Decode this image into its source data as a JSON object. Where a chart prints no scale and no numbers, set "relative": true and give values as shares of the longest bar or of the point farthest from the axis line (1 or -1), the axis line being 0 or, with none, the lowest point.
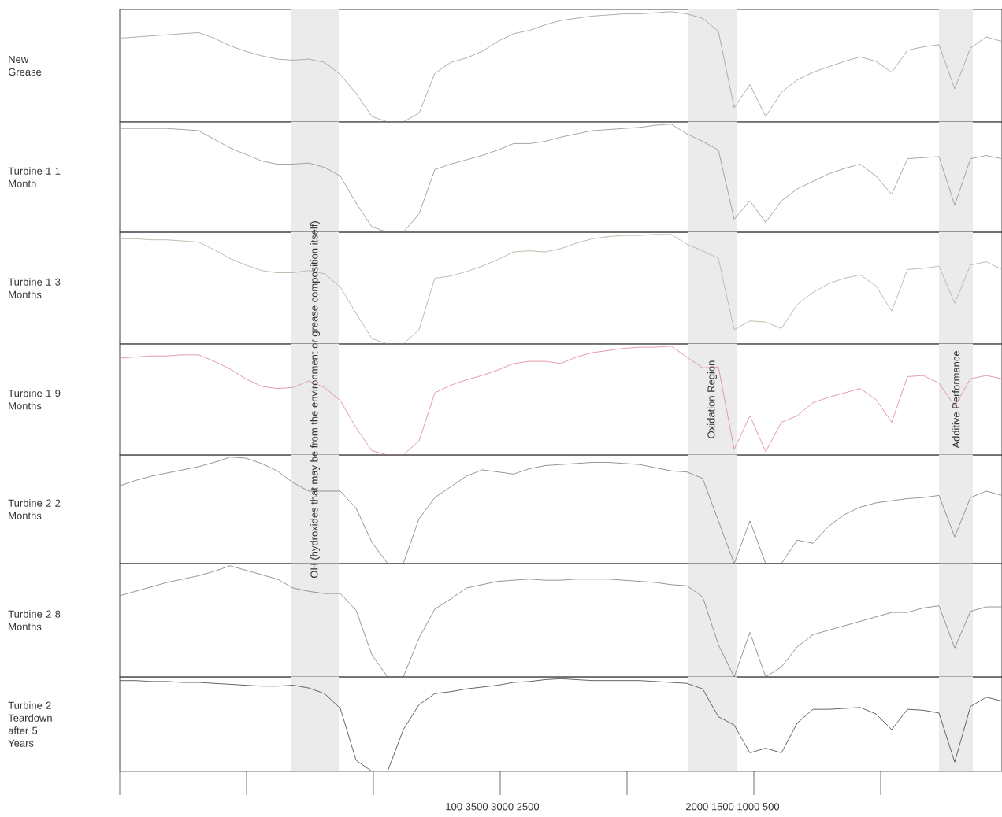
{
  "chart_data": [
    {
      "type": "line",
      "ylabel": "New Grease",
      "relative": true,
      "categories": [
        null,
        null,
        null,
        null,
        null,
        null,
        null,
        null,
        null,
        null,
        null,
        null,
        null,
        null,
        null,
        null,
        null,
        null,
        null,
        null,
        null,
        null,
        null,
        null,
        null,
        null,
        null,
        null,
        null,
        null,
        null,
        null,
        null,
        null,
        null,
        null,
        null,
        null,
        null,
        null,
        null,
        null,
        null,
        null,
        null,
        null,
        null,
        null,
        null,
        null,
        null,
        null,
        null,
        null,
        null,
        null,
        null
      ],
      "series": [
        {
          "color": "#a4a4b4",
          "values": [
            0.76,
            0.77,
            0.78,
            0.79,
            0.8,
            0.81,
            0.76,
            0.69,
            0.64,
            0.6,
            0.57,
            0.56,
            0.57,
            0.54,
            0.43,
            0.26,
            0.05,
            0,
            0,
            0.08,
            0.44,
            0.54,
            0.58,
            0.64,
            0.73,
            0.8,
            0.83,
            0.88,
            0.92,
            0.94,
            0.96,
            0.97,
            0.98,
            0.98,
            0.99,
            1,
            0.98,
            0.94,
            0.82,
            0.13,
            0.34,
            0.05,
            0.27,
            0.38,
            0.45,
            0.5,
            0.55,
            0.59,
            0.55,
            0.45,
            0.65,
            0.68,
            0.7,
            0.3,
            0.67,
            0.77,
            0.73
          ]
        }
      ]
    },
    {
      "type": "line",
      "ylabel": "Turbine 1 1 Month",
      "relative": true,
      "categories": [
        null,
        null,
        null,
        null,
        null,
        null,
        null,
        null,
        null,
        null,
        null,
        null,
        null,
        null,
        null,
        null,
        null,
        null,
        null,
        null,
        null,
        null,
        null,
        null,
        null,
        null,
        null,
        null,
        null,
        null,
        null,
        null,
        null,
        null,
        null,
        null,
        null,
        null,
        null,
        null,
        null,
        null,
        null,
        null,
        null,
        null,
        null,
        null,
        null,
        null,
        null,
        null,
        null,
        null,
        null,
        null,
        null
      ],
      "series": [
        {
          "color": "#9c9c9c",
          "values": [
            0.96,
            0.96,
            0.96,
            0.96,
            0.95,
            0.94,
            0.86,
            0.78,
            0.72,
            0.66,
            0.63,
            0.63,
            0.64,
            0.6,
            0.52,
            0.27,
            0.05,
            0,
            0,
            0.17,
            0.58,
            0.63,
            0.67,
            0.71,
            0.76,
            0.82,
            0.82,
            0.84,
            0.88,
            0.91,
            0.94,
            0.95,
            0.96,
            0.97,
            0.99,
            1,
            0.91,
            0.84,
            0.76,
            0.12,
            0.29,
            0.09,
            0.29,
            0.4,
            0.47,
            0.54,
            0.59,
            0.63,
            0.52,
            0.35,
            0.68,
            0.69,
            0.7,
            0.25,
            0.68,
            0.71,
            0.68
          ]
        }
      ]
    },
    {
      "type": "line",
      "ylabel": "Turbine 1 3 Months",
      "relative": true,
      "categories": [
        null,
        null,
        null,
        null,
        null,
        null,
        null,
        null,
        null,
        null,
        null,
        null,
        null,
        null,
        null,
        null,
        null,
        null,
        null,
        null,
        null,
        null,
        null,
        null,
        null,
        null,
        null,
        null,
        null,
        null,
        null,
        null,
        null,
        null,
        null,
        null,
        null,
        null,
        null,
        null,
        null,
        null,
        null,
        null,
        null,
        null,
        null,
        null,
        null,
        null,
        null,
        null,
        null,
        null,
        null,
        null,
        null
      ],
      "series": [
        {
          "color": "#b4b8a4",
          "values": [
            0.96,
            0.96,
            0.95,
            0.95,
            0.94,
            0.93,
            0.86,
            0.78,
            0.72,
            0.67,
            0.65,
            0.65,
            0.67,
            0.64,
            0.52,
            0.28,
            0.05,
            0,
            0,
            0.13,
            0.6,
            0.62,
            0.66,
            0.71,
            0.77,
            0.84,
            0.85,
            0.84,
            0.87,
            0.92,
            0.96,
            0.98,
            0.99,
            0.99,
            1,
            1,
            0.91,
            0.85,
            0.78,
            0.13,
            0.21,
            0.2,
            0.14,
            0.36,
            0.47,
            0.55,
            0.6,
            0.63,
            0.53,
            0.3,
            0.68,
            0.69,
            0.71,
            0.37,
            0.72,
            0.75,
            0.68
          ]
        }
      ]
    },
    {
      "type": "line",
      "ylabel": "Turbine 1 9 Months",
      "relative": true,
      "annotations": [
        "OH (hydroxides that may be from the environment or grease composition itself)",
        "Oxidation Region",
        "Additive Performance"
      ],
      "categories": [
        null,
        null,
        null,
        null,
        null,
        null,
        null,
        null,
        null,
        null,
        null,
        null,
        null,
        null,
        null,
        null,
        null,
        null,
        null,
        null,
        null,
        null,
        null,
        null,
        null,
        null,
        null,
        null,
        null,
        null,
        null,
        null,
        null,
        null,
        null,
        null,
        null,
        null,
        null,
        null,
        null,
        null,
        null,
        null,
        null,
        null,
        null,
        null,
        null,
        null,
        null,
        null,
        null,
        null,
        null,
        null,
        null
      ],
      "series": [
        {
          "color": "#e0929c",
          "values": [
            0.89,
            0.9,
            0.91,
            0.91,
            0.92,
            0.92,
            0.86,
            0.79,
            0.7,
            0.63,
            0.61,
            0.62,
            0.68,
            0.62,
            0.5,
            0.25,
            0.04,
            0,
            0,
            0.13,
            0.57,
            0.64,
            0.69,
            0.73,
            0.78,
            0.84,
            0.86,
            0.86,
            0.84,
            0.9,
            0.94,
            0.96,
            0.98,
            0.99,
            0.99,
            1,
            0.9,
            0.8,
            0.81,
            0.05,
            0.36,
            0.03,
            0.3,
            0.36,
            0.48,
            0.53,
            0.57,
            0.61,
            0.51,
            0.3,
            0.72,
            0.73,
            0.66,
            0.45,
            0.7,
            0.73,
            0.7
          ]
        }
      ]
    },
    {
      "type": "line",
      "ylabel": "Turbine 2 2 Months",
      "relative": true,
      "categories": [
        null,
        null,
        null,
        null,
        null,
        null,
        null,
        null,
        null,
        null,
        null,
        null,
        null,
        null,
        null,
        null,
        null,
        null,
        null,
        null,
        null,
        null,
        null,
        null,
        null,
        null,
        null,
        null,
        null,
        null,
        null,
        null,
        null,
        null,
        null,
        null,
        null,
        null,
        null,
        null,
        null,
        null,
        null,
        null,
        null,
        null,
        null,
        null,
        null,
        null,
        null,
        null,
        null,
        null,
        null,
        null,
        null
      ],
      "series": [
        {
          "color": "#8a8a8a",
          "values": [
            0.73,
            0.78,
            0.82,
            0.85,
            0.88,
            0.91,
            0.95,
            1,
            0.99,
            0.94,
            0.87,
            0.76,
            0.68,
            0.68,
            0.68,
            0.52,
            0.2,
            0,
            0,
            0.42,
            0.62,
            0.72,
            0.82,
            0.88,
            0.86,
            0.84,
            0.89,
            0.92,
            0.93,
            0.94,
            0.95,
            0.95,
            0.94,
            0.93,
            0.9,
            0.87,
            0.86,
            0.8,
            0.4,
            0,
            0.4,
            0,
            0,
            0.22,
            0.19,
            0.35,
            0.46,
            0.53,
            0.57,
            0.59,
            0.61,
            0.62,
            0.64,
            0.25,
            0.62,
            0.68,
            0.64
          ]
        }
      ]
    },
    {
      "type": "line",
      "ylabel": "Turbine 2 8 Months",
      "relative": true,
      "categories": [
        null,
        null,
        null,
        null,
        null,
        null,
        null,
        null,
        null,
        null,
        null,
        null,
        null,
        null,
        null,
        null,
        null,
        null,
        null,
        null,
        null,
        null,
        null,
        null,
        null,
        null,
        null,
        null,
        null,
        null,
        null,
        null,
        null,
        null,
        null,
        null,
        null,
        null,
        null,
        null,
        null,
        null,
        null,
        null,
        null,
        null,
        null,
        null,
        null,
        null,
        null,
        null,
        null,
        null,
        null,
        null,
        null
      ],
      "series": [
        {
          "color": "#8a8a8a",
          "values": [
            0.73,
            0.77,
            0.81,
            0.85,
            0.88,
            0.91,
            0.95,
            1,
            0.96,
            0.92,
            0.88,
            0.8,
            0.77,
            0.75,
            0.75,
            0.6,
            0.2,
            0,
            0,
            0.35,
            0.61,
            0.7,
            0.8,
            0.83,
            0.86,
            0.87,
            0.88,
            0.87,
            0.87,
            0.88,
            0.88,
            0.88,
            0.87,
            0.86,
            0.85,
            0.83,
            0.82,
            0.72,
            0.29,
            0,
            0.4,
            0,
            0.09,
            0.27,
            0.38,
            0.42,
            0.46,
            0.5,
            0.54,
            0.58,
            0.58,
            0.62,
            0.64,
            0.26,
            0.59,
            0.63,
            0.63
          ]
        }
      ]
    },
    {
      "type": "line",
      "ylabel": "Turbine 2 Teardown after 5 Years",
      "relative": true,
      "categories": [
        null,
        null,
        null,
        null,
        null,
        null,
        null,
        null,
        null,
        null,
        null,
        null,
        null,
        null,
        null,
        null,
        null,
        null,
        null,
        null,
        null,
        null,
        null,
        null,
        null,
        null,
        null,
        null,
        null,
        null,
        null,
        null,
        null,
        null,
        null,
        null,
        null,
        null,
        null,
        null,
        null,
        null,
        null,
        null,
        null,
        null,
        null,
        null,
        null,
        null,
        null,
        null,
        null,
        null,
        null,
        null,
        null
      ],
      "annotations": [
        "100 3500 3000 2500",
        "2000 1500 1000 500"
      ],
      "series": [
        {
          "color": "#555555",
          "values": [
            0.98,
            0.98,
            0.97,
            0.97,
            0.96,
            0.96,
            0.95,
            0.94,
            0.93,
            0.92,
            0.92,
            0.93,
            0.9,
            0.84,
            0.68,
            0.12,
            0,
            0,
            0.45,
            0.72,
            0.84,
            0.86,
            0.89,
            0.91,
            0.93,
            0.96,
            0.97,
            0.99,
            1,
            0.99,
            0.98,
            0.98,
            0.98,
            0.98,
            0.97,
            0.96,
            0.95,
            0.89,
            0.59,
            0.5,
            0.2,
            0.25,
            0.2,
            0.52,
            0.67,
            0.67,
            0.68,
            0.69,
            0.62,
            0.45,
            0.67,
            0.66,
            0.63,
            0.1,
            0.7,
            0.8,
            0.76
          ]
        }
      ]
    }
  ]
}
